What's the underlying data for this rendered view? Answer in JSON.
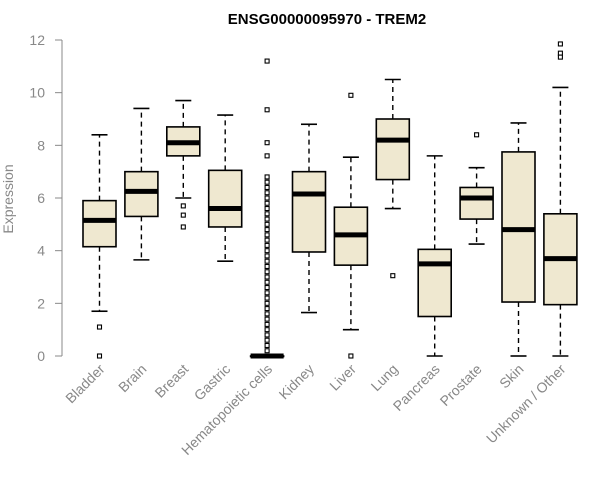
{
  "chart_data": {
    "type": "boxplot",
    "title": "ENSG00000095970 - TREM2",
    "xlabel": "",
    "ylabel": "Expression",
    "ylim": [
      0,
      12
    ],
    "yticks": [
      0,
      2,
      4,
      6,
      8,
      10,
      12
    ],
    "box_fill": "#efe8d0",
    "median_color": "#000000",
    "categories": [
      "Bladder",
      "Brain",
      "Breast",
      "Gastric",
      "Hematopoietic cells",
      "Kidney",
      "Liver",
      "Lung",
      "Pancreas",
      "Prostate",
      "Skin",
      "Unknown / Other"
    ],
    "boxes": [
      {
        "name": "Bladder",
        "whisker_low": 1.7,
        "q1": 4.15,
        "median": 5.15,
        "q3": 5.9,
        "whisker_high": 8.4,
        "outliers": [
          1.1,
          0.0
        ]
      },
      {
        "name": "Brain",
        "whisker_low": 3.65,
        "q1": 5.3,
        "median": 6.25,
        "q3": 7.0,
        "whisker_high": 9.4,
        "outliers": []
      },
      {
        "name": "Breast",
        "whisker_low": 6.0,
        "q1": 7.6,
        "median": 8.1,
        "q3": 8.7,
        "whisker_high": 9.7,
        "outliers": [
          5.7,
          5.35,
          4.9
        ]
      },
      {
        "name": "Gastric",
        "whisker_low": 3.6,
        "q1": 4.9,
        "median": 5.6,
        "q3": 7.05,
        "whisker_high": 9.15,
        "outliers": []
      },
      {
        "name": "Hematopoietic cells",
        "whisker_low": 0.0,
        "q1": 0.0,
        "median": 0.0,
        "q3": 0.0,
        "whisker_high": 0.0,
        "outliers": [
          11.2,
          9.35,
          8.1,
          7.6,
          6.8,
          6.6,
          6.4,
          6.2,
          6.0,
          5.8,
          5.6,
          5.4,
          5.2,
          5.0,
          4.8,
          4.6,
          4.4,
          4.2,
          4.0,
          3.8,
          3.6,
          3.4,
          3.2,
          3.0,
          2.8,
          2.6,
          2.4,
          2.2,
          2.0,
          1.8,
          1.6,
          1.4,
          1.2,
          1.0,
          0.8,
          0.6,
          0.4,
          0.2
        ]
      },
      {
        "name": "Kidney",
        "whisker_low": 1.65,
        "q1": 3.95,
        "median": 6.15,
        "q3": 7.0,
        "whisker_high": 8.8,
        "outliers": []
      },
      {
        "name": "Liver",
        "whisker_low": 1.0,
        "q1": 3.45,
        "median": 4.6,
        "q3": 5.65,
        "whisker_high": 7.55,
        "outliers": [
          9.9,
          0.0
        ]
      },
      {
        "name": "Lung",
        "whisker_low": 5.6,
        "q1": 6.7,
        "median": 8.2,
        "q3": 9.0,
        "whisker_high": 10.5,
        "outliers": [
          3.05
        ]
      },
      {
        "name": "Pancreas",
        "whisker_low": 0.0,
        "q1": 1.5,
        "median": 3.5,
        "q3": 4.05,
        "whisker_high": 7.6,
        "outliers": []
      },
      {
        "name": "Prostate",
        "whisker_low": 4.25,
        "q1": 5.2,
        "median": 6.0,
        "q3": 6.4,
        "whisker_high": 7.15,
        "outliers": [
          8.4
        ]
      },
      {
        "name": "Skin",
        "whisker_low": 0.0,
        "q1": 2.05,
        "median": 4.8,
        "q3": 7.75,
        "whisker_high": 8.85,
        "outliers": []
      },
      {
        "name": "Unknown / Other",
        "whisker_low": 0.0,
        "q1": 1.95,
        "median": 3.7,
        "q3": 5.4,
        "whisker_high": 10.2,
        "outliers": [
          11.85,
          11.5,
          11.35
        ]
      }
    ]
  }
}
